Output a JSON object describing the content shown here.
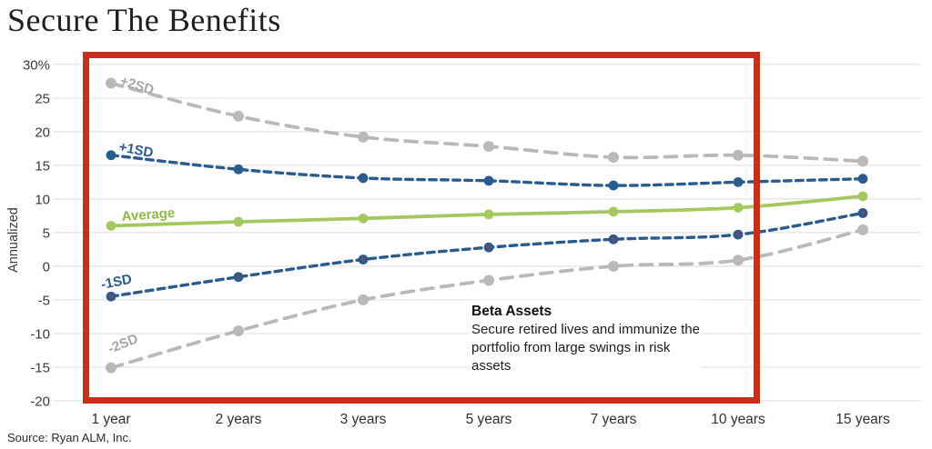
{
  "title": "Secure The Benefits",
  "source": "Source: Ryan ALM, Inc.",
  "annotation": {
    "heading": "Beta Assets",
    "body": "Secure retired lives and immunize the portfolio from large swings in risk assets"
  },
  "colors": {
    "highlight_box": "#c5301b",
    "blue_series": "#2a5b8f",
    "green_series": "#a5c75f",
    "gray_series": "#b9b9b9",
    "gridline": "#e2e2e2",
    "axis_text": "#3a3a3a",
    "marker_inner_dot": "#7d4660"
  },
  "chart_data": {
    "type": "line",
    "title": "Secure The Benefits",
    "xlabel": "",
    "ylabel": "Annualized",
    "ylim": [
      -20,
      30
    ],
    "grid": true,
    "legend_position": "inline-labels-on-lines",
    "y_tick_labels": [
      "30%",
      "25",
      "20",
      "15",
      "10",
      "5",
      "0",
      "-5",
      "-10",
      "-15",
      "-20"
    ],
    "y_tick_values": [
      30,
      25,
      20,
      15,
      10,
      5,
      0,
      -5,
      -10,
      -15,
      -20
    ],
    "categories": [
      "1 year",
      "2 years",
      "3 years",
      "5 years",
      "7 years",
      "10 years",
      "15 years"
    ],
    "series": [
      {
        "name": "+2SD",
        "style": "dashed",
        "color": "#b9b9b9",
        "label_color": "#a6a6a6",
        "values": [
          27.2,
          22.3,
          19.2,
          17.8,
          16.2,
          16.5,
          15.6
        ]
      },
      {
        "name": "+1SD",
        "style": "dashed",
        "color": "#2a5b8f",
        "label_color": "#2a5b8f",
        "values": [
          16.5,
          14.4,
          13.1,
          12.7,
          12.0,
          12.5,
          13.0
        ]
      },
      {
        "name": "Average",
        "style": "solid",
        "color": "#a5c75f",
        "label_color": "#8fb944",
        "values": [
          6.0,
          6.6,
          7.1,
          7.7,
          8.1,
          8.7,
          10.4
        ]
      },
      {
        "name": "-1SD",
        "style": "dashed",
        "color": "#2a5b8f",
        "label_color": "#2a5b8f",
        "values": [
          -4.5,
          -1.6,
          1.0,
          2.8,
          4.0,
          4.7,
          7.9
        ]
      },
      {
        "name": "-2SD",
        "style": "dashed",
        "color": "#b9b9b9",
        "label_color": "#a6a6a6",
        "values": [
          -15.1,
          -9.6,
          -5.0,
          -2.1,
          0.0,
          0.9,
          5.4
        ]
      }
    ]
  }
}
